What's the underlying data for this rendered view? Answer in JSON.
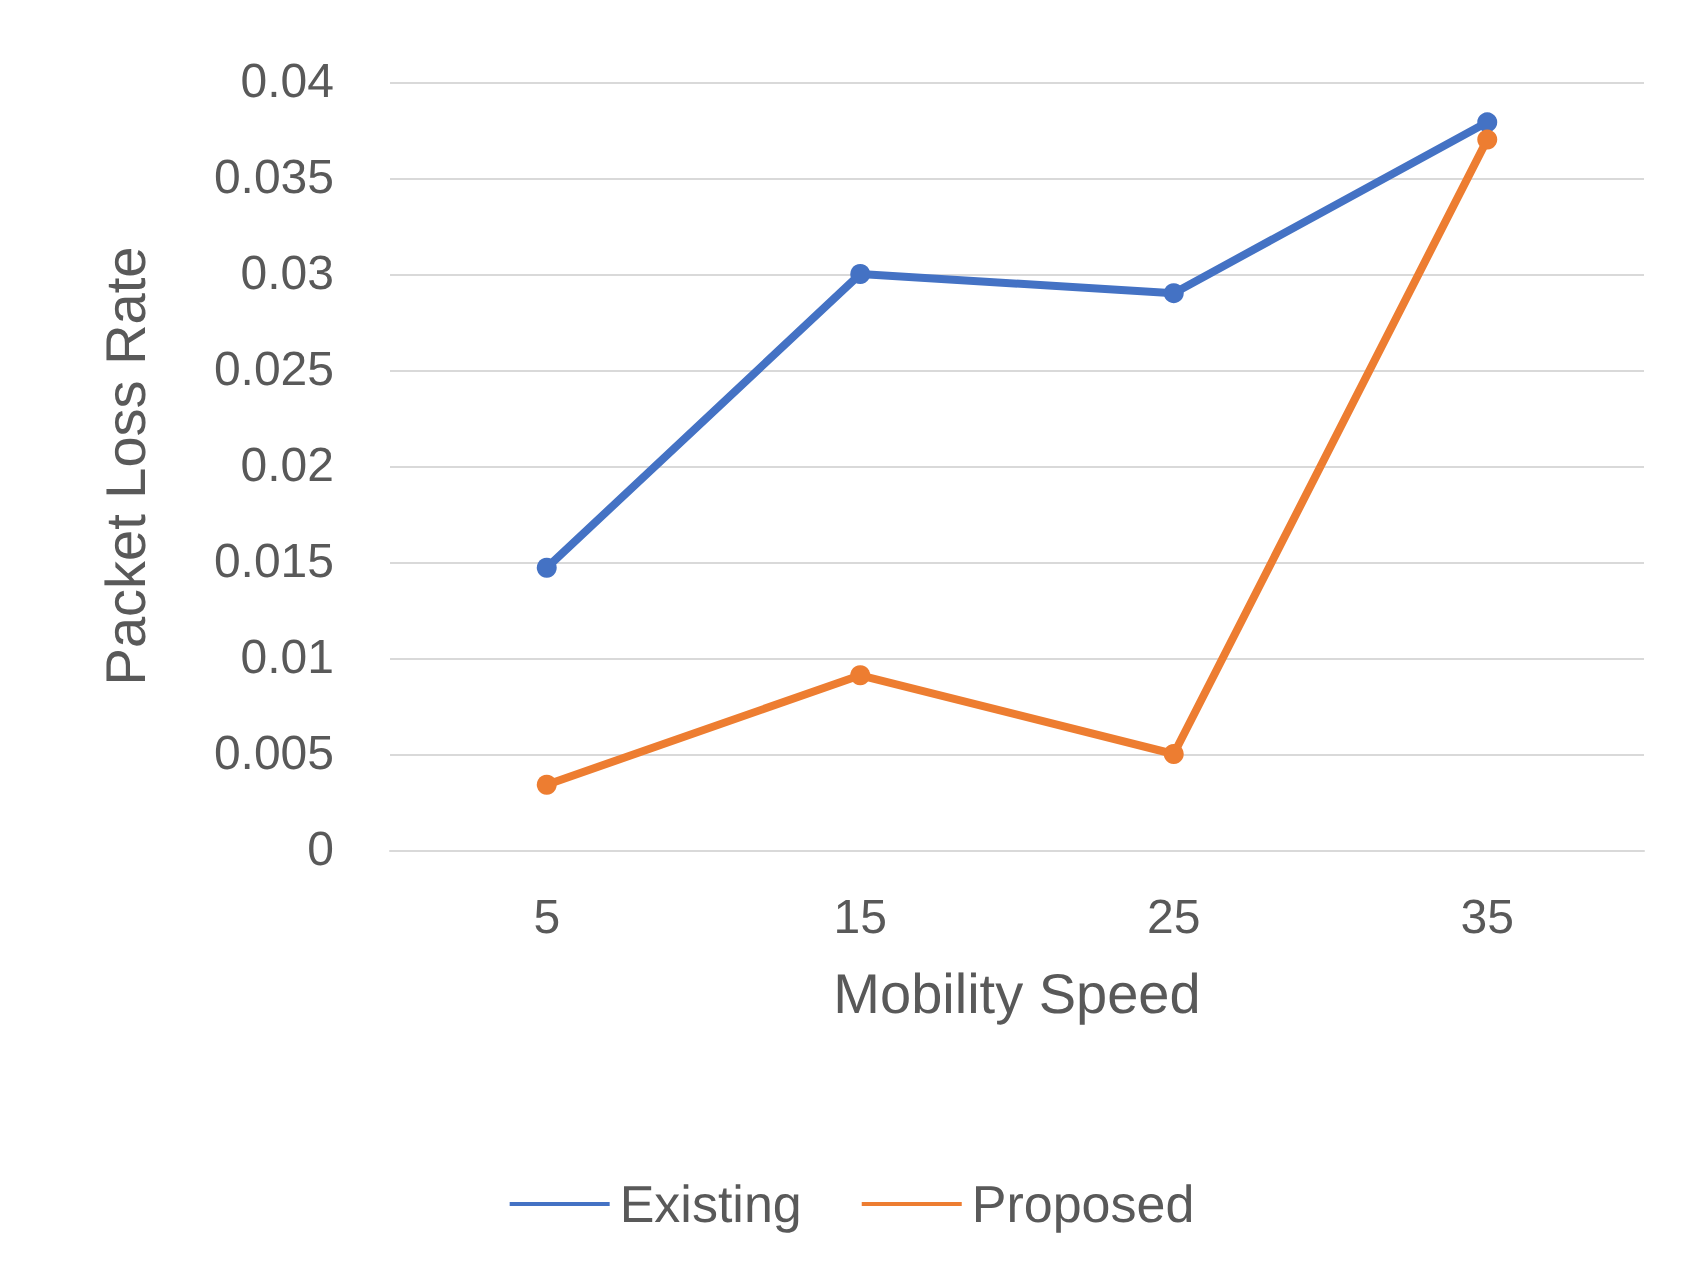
{
  "chart_data": {
    "type": "line",
    "xlabel": "Mobility Speed",
    "ylabel": "Packet Loss Rate",
    "categories": [
      "5",
      "15",
      "25",
      "35"
    ],
    "series": [
      {
        "name": "Existing",
        "color": "#4472c4",
        "values": [
          0.0147,
          0.03,
          0.029,
          0.0379
        ]
      },
      {
        "name": "Proposed",
        "color": "#ed7d31",
        "values": [
          0.0034,
          0.0091,
          0.005,
          0.037
        ]
      }
    ],
    "ylim": [
      0,
      0.04
    ],
    "yticks": [
      0,
      0.005,
      0.01,
      0.015,
      0.02,
      0.025,
      0.03,
      0.035,
      0.04
    ],
    "grid": "y",
    "legend": "bottom",
    "marker": "circle",
    "line_style": "solid"
  }
}
